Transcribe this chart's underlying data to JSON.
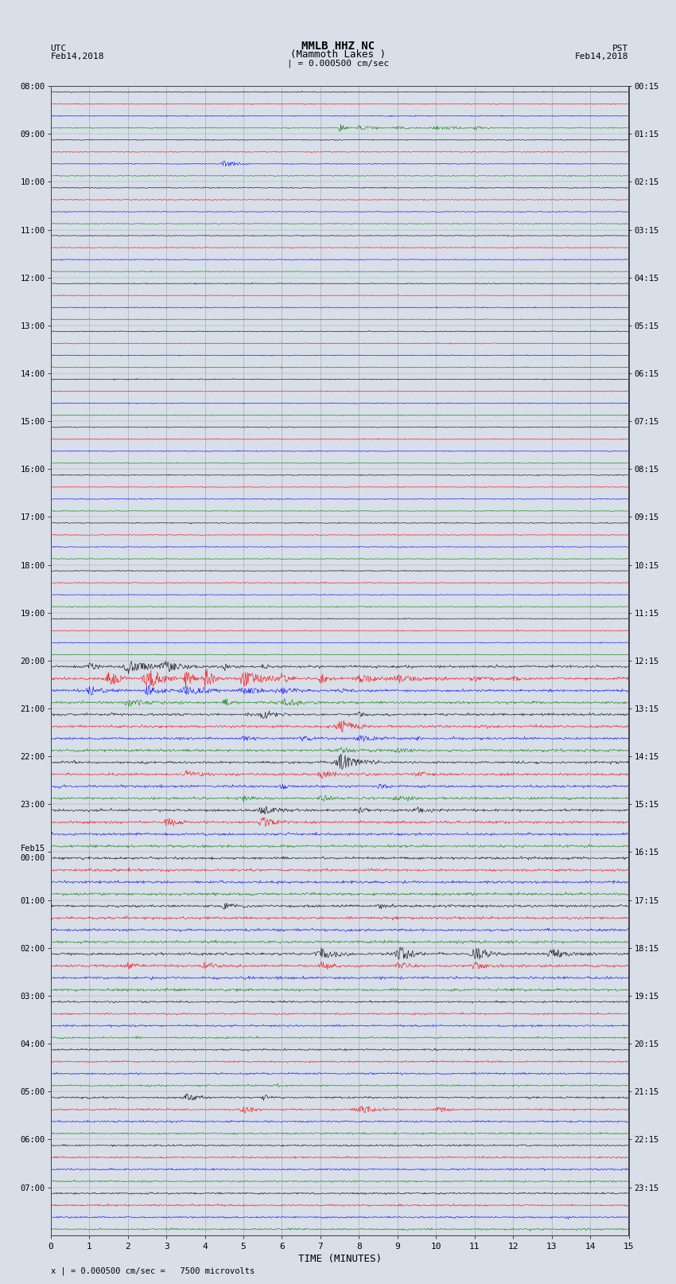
{
  "title_line1": "MMLB HHZ NC",
  "title_line2": "(Mammoth Lakes )",
  "title_line3": "| = 0.000500 cm/sec",
  "label_utc": "UTC",
  "label_pst": "PST",
  "date_left": "Feb14,2018",
  "date_right": "Feb14,2018",
  "xlabel": "TIME (MINUTES)",
  "footer": "x | = 0.000500 cm/sec =   7500 microvolts",
  "utc_labels": [
    "08:00",
    "09:00",
    "10:00",
    "11:00",
    "12:00",
    "13:00",
    "14:00",
    "15:00",
    "16:00",
    "17:00",
    "18:00",
    "19:00",
    "20:00",
    "21:00",
    "22:00",
    "23:00",
    "Feb15\n00:00",
    "01:00",
    "02:00",
    "03:00",
    "04:00",
    "05:00",
    "06:00",
    "07:00"
  ],
  "pst_labels": [
    "00:15",
    "01:15",
    "02:15",
    "03:15",
    "04:15",
    "05:15",
    "06:15",
    "07:15",
    "08:15",
    "09:15",
    "10:15",
    "11:15",
    "12:15",
    "13:15",
    "14:15",
    "15:15",
    "16:15",
    "17:15",
    "18:15",
    "19:15",
    "20:15",
    "21:15",
    "22:15",
    "23:15"
  ],
  "n_hours": 24,
  "traces_per_hour": 4,
  "colors": [
    "black",
    "red",
    "blue",
    "green"
  ],
  "n_minutes": 15,
  "samples_per_row": 900,
  "background_color": "#d8dfe8",
  "xmin": 0,
  "xmax": 15,
  "noise_base": 0.04,
  "amplitude_scale": 0.45,
  "event_rows": {
    "3": {
      "times": [
        7.5,
        8.0,
        9.0,
        10.0,
        11.0
      ],
      "amps": [
        0.8,
        0.5,
        0.3,
        0.4,
        0.3
      ]
    },
    "6": {
      "times": [
        4.5
      ],
      "amps": [
        0.6
      ]
    },
    "48": {
      "times": [
        1.0,
        2.0,
        3.0,
        4.5,
        5.5
      ],
      "amps": [
        0.7,
        1.2,
        0.9,
        0.6,
        0.5
      ]
    },
    "49": {
      "times": [
        1.5,
        2.5,
        3.5,
        4.0,
        5.0,
        6.0,
        7.0,
        8.0,
        9.0,
        10.0,
        11.0,
        12.0
      ],
      "amps": [
        1.5,
        2.0,
        1.8,
        2.2,
        1.5,
        1.2,
        1.0,
        0.8,
        0.7,
        0.6,
        0.5,
        0.4
      ]
    },
    "50": {
      "times": [
        1.0,
        2.5,
        3.5,
        5.0,
        6.0,
        7.5
      ],
      "amps": [
        0.8,
        1.0,
        0.9,
        0.7,
        0.5,
        0.4
      ]
    },
    "51": {
      "times": [
        2.0,
        4.5,
        6.0
      ],
      "amps": [
        0.7,
        0.9,
        0.6
      ]
    },
    "52": {
      "times": [
        5.5,
        8.0
      ],
      "amps": [
        0.8,
        0.5
      ]
    },
    "53": {
      "times": [
        7.5
      ],
      "amps": [
        1.2
      ]
    },
    "54": {
      "times": [
        5.0,
        6.5,
        8.0,
        9.5
      ],
      "amps": [
        0.6,
        0.7,
        0.5,
        0.4
      ]
    },
    "55": {
      "times": [
        7.5,
        9.0
      ],
      "amps": [
        0.5,
        0.4
      ]
    },
    "56": {
      "times": [
        7.5
      ],
      "amps": [
        1.5
      ]
    },
    "57": {
      "times": [
        3.5,
        7.0,
        9.5
      ],
      "amps": [
        0.6,
        0.7,
        0.5
      ]
    },
    "58": {
      "times": [
        6.0,
        8.5
      ],
      "amps": [
        0.7,
        0.6
      ]
    },
    "59": {
      "times": [
        5.0,
        7.0,
        9.0
      ],
      "amps": [
        0.6,
        0.5,
        0.4
      ]
    },
    "60": {
      "times": [
        5.5,
        8.0,
        9.5
      ],
      "amps": [
        0.8,
        0.6,
        0.5
      ]
    },
    "61": {
      "times": [
        3.0,
        5.5
      ],
      "amps": [
        0.7,
        0.9
      ]
    },
    "68": {
      "times": [
        4.5,
        8.5
      ],
      "amps": [
        0.6,
        0.5
      ]
    },
    "72": {
      "times": [
        7.0,
        9.0,
        11.0,
        13.0
      ],
      "amps": [
        1.0,
        1.5,
        1.2,
        0.8
      ]
    },
    "73": {
      "times": [
        2.0,
        4.0,
        7.0,
        9.0,
        11.0
      ],
      "amps": [
        0.7,
        0.6,
        0.8,
        0.7,
        0.6
      ]
    },
    "84": {
      "times": [
        3.5,
        5.5
      ],
      "amps": [
        0.7,
        0.6
      ]
    },
    "85": {
      "times": [
        5.0,
        8.0,
        10.0
      ],
      "amps": [
        0.8,
        0.7,
        0.6
      ]
    }
  }
}
